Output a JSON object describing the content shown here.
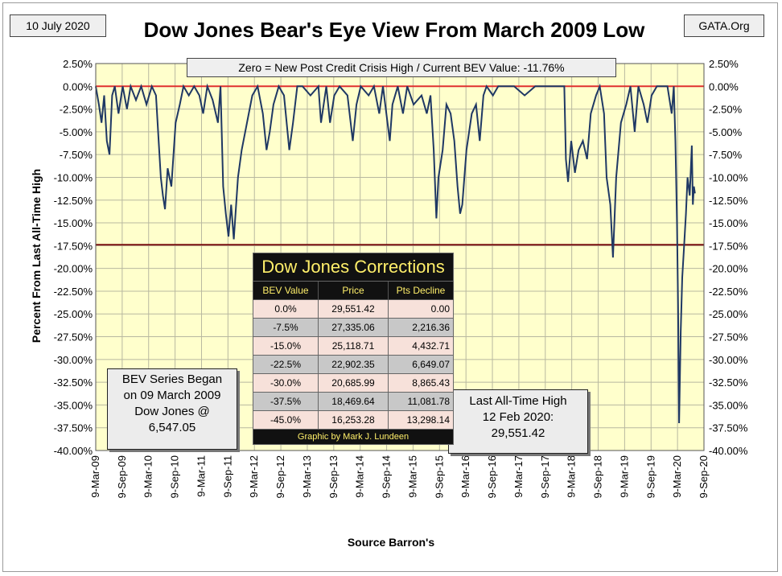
{
  "header": {
    "date_label": "10 July 2020",
    "source_tag": "GATA.Org"
  },
  "annotations": {
    "zero_note": "Zero = New Post Credit Crisis High / Current BEV Value:  -11.76%",
    "bev_began": [
      "BEV Series Began",
      "on 09 March 2009",
      "Dow Jones @",
      "6,547.05"
    ],
    "last_high": [
      "Last All-Time High",
      "12 Feb 2020:",
      "29,551.42"
    ]
  },
  "corrections_table": {
    "title": "Dow Jones Corrections",
    "headers": [
      "BEV Value",
      "Price",
      "Pts Decline"
    ],
    "rows": [
      [
        "0.0%",
        "29,551.42",
        "0.00"
      ],
      [
        "-7.5%",
        "27,335.06",
        "2,216.36"
      ],
      [
        "-15.0%",
        "25,118.71",
        "4,432.71"
      ],
      [
        "-22.5%",
        "22,902.35",
        "6,649.07"
      ],
      [
        "-30.0%",
        "20,685.99",
        "8,865.43"
      ],
      [
        "-37.5%",
        "18,469.64",
        "11,081.78"
      ],
      [
        "-45.0%",
        "16,253.28",
        "13,298.14"
      ]
    ],
    "footer": "Graphic by Mark J. Lundeen"
  },
  "colors": {
    "plot_bg": "#ffffcc",
    "series": "#1f3864",
    "zero_line": "#e03030",
    "ref_line": "#7a1010"
  },
  "chart_data": {
    "type": "line",
    "title": "Dow Jones Bear's Eye View From March 2009 Low",
    "xlabel": "Source Barron's",
    "ylabel": "Percent From Last All-Time High",
    "ylim": [
      -40,
      2.5
    ],
    "yticks": [
      "2.50%",
      "0.00%",
      "-2.50%",
      "-5.00%",
      "-7.50%",
      "-10.00%",
      "-12.50%",
      "-15.00%",
      "-17.50%",
      "-20.00%",
      "-22.50%",
      "-25.00%",
      "-27.50%",
      "-30.00%",
      "-32.50%",
      "-35.00%",
      "-37.50%",
      "-40.00%"
    ],
    "xticks": [
      "9-Mar-09",
      "9-Sep-09",
      "9-Mar-10",
      "9-Sep-10",
      "9-Mar-11",
      "9-Sep-11",
      "9-Mar-12",
      "9-Sep-12",
      "9-Mar-13",
      "9-Sep-13",
      "9-Mar-14",
      "9-Sep-14",
      "9-Mar-15",
      "9-Sep-15",
      "9-Mar-16",
      "9-Sep-16",
      "9-Mar-17",
      "9-Sep-17",
      "9-Mar-18",
      "9-Sep-18",
      "9-Mar-19",
      "9-Sep-19",
      "9-Mar-20",
      "9-Sep-20"
    ],
    "grid": true,
    "reference_lines": [
      0,
      -17.4
    ],
    "series": [
      {
        "values": [
          [
            2009.19,
            0
          ],
          [
            2009.25,
            -2
          ],
          [
            2009.3,
            -4
          ],
          [
            2009.35,
            -1
          ],
          [
            2009.4,
            -6
          ],
          [
            2009.45,
            -7.5
          ],
          [
            2009.5,
            -1
          ],
          [
            2009.55,
            0
          ],
          [
            2009.62,
            -3
          ],
          [
            2009.7,
            0
          ],
          [
            2009.78,
            -2.5
          ],
          [
            2009.85,
            0
          ],
          [
            2009.95,
            -1.5
          ],
          [
            2010.05,
            0
          ],
          [
            2010.15,
            -2
          ],
          [
            2010.25,
            0
          ],
          [
            2010.33,
            -1
          ],
          [
            2010.38,
            -6
          ],
          [
            2010.42,
            -10
          ],
          [
            2010.46,
            -12
          ],
          [
            2010.5,
            -13.5
          ],
          [
            2010.55,
            -9
          ],
          [
            2010.62,
            -11
          ],
          [
            2010.7,
            -4
          ],
          [
            2010.78,
            -2
          ],
          [
            2010.85,
            0
          ],
          [
            2010.95,
            -1
          ],
          [
            2011.05,
            0
          ],
          [
            2011.15,
            -1
          ],
          [
            2011.22,
            -3
          ],
          [
            2011.3,
            0
          ],
          [
            2011.4,
            -1.5
          ],
          [
            2011.5,
            -4
          ],
          [
            2011.55,
            0
          ],
          [
            2011.6,
            -11
          ],
          [
            2011.65,
            -14
          ],
          [
            2011.7,
            -16.5
          ],
          [
            2011.75,
            -13
          ],
          [
            2011.8,
            -16.8
          ],
          [
            2011.88,
            -10
          ],
          [
            2011.95,
            -7
          ],
          [
            2012.05,
            -4
          ],
          [
            2012.15,
            -1
          ],
          [
            2012.25,
            0
          ],
          [
            2012.35,
            -3
          ],
          [
            2012.42,
            -7
          ],
          [
            2012.48,
            -5
          ],
          [
            2012.55,
            -2
          ],
          [
            2012.65,
            0
          ],
          [
            2012.75,
            -1
          ],
          [
            2012.85,
            -7
          ],
          [
            2012.92,
            -4
          ],
          [
            2013.0,
            0
          ],
          [
            2013.1,
            0
          ],
          [
            2013.25,
            -1
          ],
          [
            2013.4,
            0
          ],
          [
            2013.45,
            -4
          ],
          [
            2013.55,
            0
          ],
          [
            2013.62,
            -4
          ],
          [
            2013.7,
            -1
          ],
          [
            2013.8,
            0
          ],
          [
            2013.95,
            -1
          ],
          [
            2014.05,
            -6
          ],
          [
            2014.12,
            -2
          ],
          [
            2014.2,
            0
          ],
          [
            2014.35,
            -1
          ],
          [
            2014.45,
            0
          ],
          [
            2014.55,
            -3
          ],
          [
            2014.62,
            0
          ],
          [
            2014.75,
            -6
          ],
          [
            2014.8,
            -2
          ],
          [
            2014.9,
            0
          ],
          [
            2015.0,
            -3
          ],
          [
            2015.08,
            0
          ],
          [
            2015.2,
            -2
          ],
          [
            2015.35,
            -1
          ],
          [
            2015.45,
            -3
          ],
          [
            2015.52,
            -1
          ],
          [
            2015.58,
            -7
          ],
          [
            2015.63,
            -14.5
          ],
          [
            2015.67,
            -10
          ],
          [
            2015.75,
            -7
          ],
          [
            2015.82,
            -2
          ],
          [
            2015.9,
            -3
          ],
          [
            2015.97,
            -6
          ],
          [
            2016.03,
            -11
          ],
          [
            2016.08,
            -14
          ],
          [
            2016.12,
            -13
          ],
          [
            2016.2,
            -7
          ],
          [
            2016.3,
            -3
          ],
          [
            2016.38,
            -2
          ],
          [
            2016.45,
            -6
          ],
          [
            2016.52,
            -1
          ],
          [
            2016.58,
            0
          ],
          [
            2016.7,
            -1
          ],
          [
            2016.8,
            0
          ],
          [
            2016.95,
            0
          ],
          [
            2017.1,
            0
          ],
          [
            2017.3,
            -1
          ],
          [
            2017.5,
            0
          ],
          [
            2017.7,
            0
          ],
          [
            2017.9,
            0
          ],
          [
            2018.05,
            0
          ],
          [
            2018.08,
            -8
          ],
          [
            2018.12,
            -10.5
          ],
          [
            2018.18,
            -6
          ],
          [
            2018.25,
            -9.5
          ],
          [
            2018.32,
            -7
          ],
          [
            2018.4,
            -6
          ],
          [
            2018.48,
            -8
          ],
          [
            2018.55,
            -3
          ],
          [
            2018.65,
            -1
          ],
          [
            2018.72,
            0
          ],
          [
            2018.8,
            -3
          ],
          [
            2018.85,
            -10
          ],
          [
            2018.92,
            -13
          ],
          [
            2018.97,
            -18.8
          ],
          [
            2019.03,
            -10
          ],
          [
            2019.12,
            -4
          ],
          [
            2019.22,
            -2
          ],
          [
            2019.3,
            0
          ],
          [
            2019.38,
            -5
          ],
          [
            2019.45,
            0
          ],
          [
            2019.55,
            -2
          ],
          [
            2019.62,
            -4
          ],
          [
            2019.7,
            -1
          ],
          [
            2019.8,
            0
          ],
          [
            2019.9,
            0
          ],
          [
            2020.0,
            0
          ],
          [
            2020.08,
            -3
          ],
          [
            2020.12,
            0
          ],
          [
            2020.15,
            -6
          ],
          [
            2020.18,
            -15
          ],
          [
            2020.2,
            -24
          ],
          [
            2020.22,
            -37
          ],
          [
            2020.25,
            -27
          ],
          [
            2020.28,
            -21
          ],
          [
            2020.31,
            -18
          ],
          [
            2020.35,
            -14
          ],
          [
            2020.38,
            -10
          ],
          [
            2020.42,
            -12
          ],
          [
            2020.46,
            -6.5
          ],
          [
            2020.48,
            -13
          ],
          [
            2020.5,
            -11
          ],
          [
            2020.52,
            -11.76
          ]
        ]
      }
    ]
  }
}
